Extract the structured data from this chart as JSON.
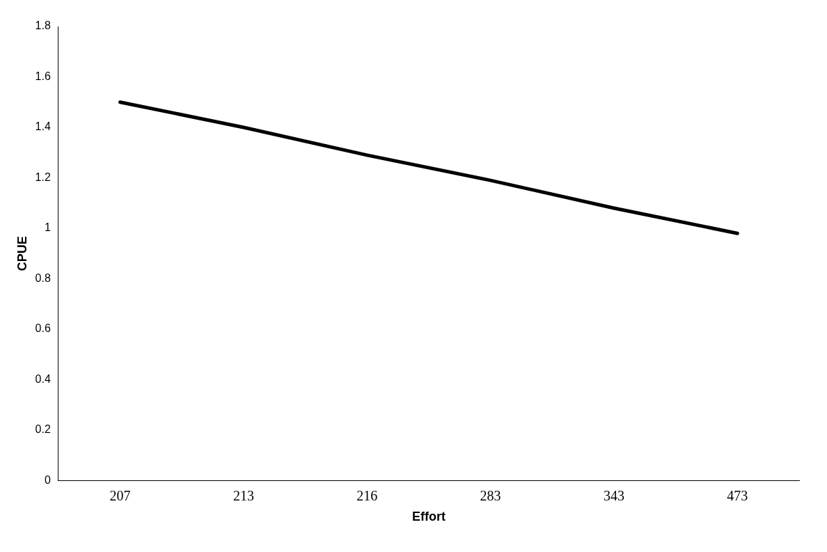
{
  "chart_data": {
    "type": "line",
    "xlabel": "Effort",
    "ylabel": "CPUE",
    "categories": [
      "207",
      "213",
      "216",
      "283",
      "343",
      "473"
    ],
    "series": [
      {
        "color": "#000000",
        "values": [
          1.5,
          1.4,
          1.29,
          1.19,
          1.08,
          0.98
        ]
      }
    ],
    "ylim": [
      0,
      1.8
    ],
    "yticks": [
      0,
      0.2,
      0.4,
      0.6,
      0.8,
      1,
      1.2,
      1.4,
      1.6,
      1.8
    ],
    "grid": false,
    "legend": false,
    "marker": "none",
    "line_style": "solid"
  }
}
